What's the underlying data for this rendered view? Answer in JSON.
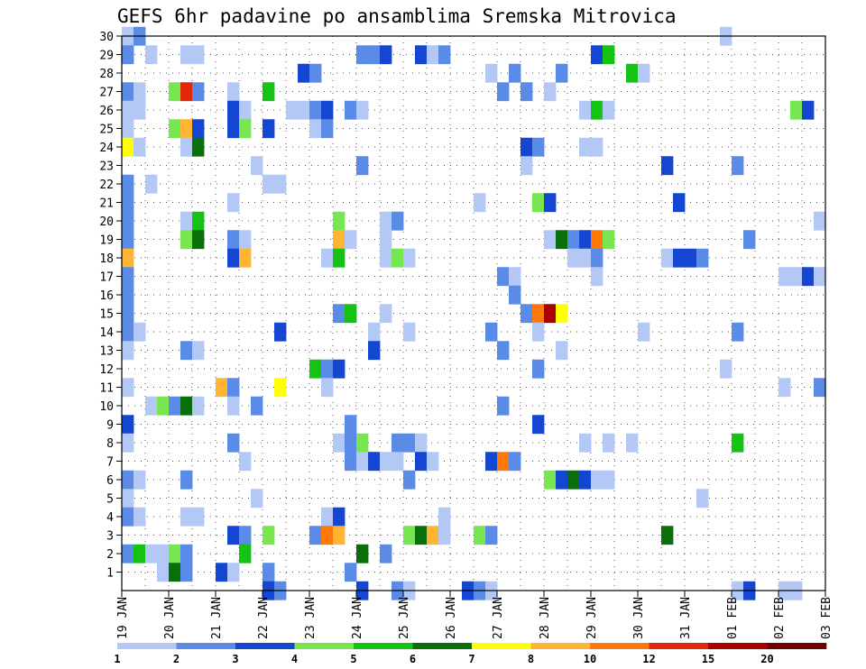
{
  "page": {
    "title": "GEFS 6hr padavine po ansamblima Sremska Mitrovica"
  },
  "chart_data": {
    "type": "heatmap",
    "title": "GEFS 6hr padavine po ansamblima Sremska Mitrovica",
    "xlabel": "",
    "ylabel": "",
    "ylim": [
      0,
      30
    ],
    "xlim": [
      0,
      60
    ],
    "grid": true,
    "x_ticks": [
      {
        "label": "19 JAN",
        "x": 0
      },
      {
        "label": "20 JAN",
        "x": 4
      },
      {
        "label": "21 JAN",
        "x": 8
      },
      {
        "label": "22 JAN",
        "x": 12
      },
      {
        "label": "23 JAN",
        "x": 16
      },
      {
        "label": "24 JAN",
        "x": 20
      },
      {
        "label": "25 JAN",
        "x": 24
      },
      {
        "label": "26 JAN",
        "x": 28
      },
      {
        "label": "27 JAN",
        "x": 32
      },
      {
        "label": "28 JAN",
        "x": 36
      },
      {
        "label": "29 JAN",
        "x": 40
      },
      {
        "label": "30 JAN",
        "x": 44
      },
      {
        "label": "31 JAN",
        "x": 48
      },
      {
        "label": "01 FEB",
        "x": 52
      },
      {
        "label": "02 FEB",
        "x": 56
      },
      {
        "label": "03 FEB",
        "x": 60
      }
    ],
    "y_ticks": [
      1,
      2,
      3,
      4,
      5,
      6,
      7,
      8,
      9,
      10,
      11,
      12,
      13,
      14,
      15,
      16,
      17,
      18,
      19,
      20,
      21,
      22,
      23,
      24,
      25,
      26,
      27,
      28,
      29,
      30
    ],
    "colorbar": {
      "boundaries": [
        "1",
        "2",
        "3",
        "4",
        "5",
        "6",
        "7",
        "8",
        "10",
        "12",
        "15",
        "20"
      ],
      "colors": [
        "#b4c8f5",
        "#5a8be6",
        "#1446d2",
        "#78e650",
        "#14c314",
        "#0a6e0a",
        "#ffff00",
        "#ffb432",
        "#ff780a",
        "#e1280a",
        "#aa0000",
        "#6e0000"
      ]
    },
    "cells": [
      {
        "m": 30,
        "t": 0,
        "c": 0
      },
      {
        "m": 30,
        "t": 1,
        "c": 1
      },
      {
        "m": 30,
        "t": 51,
        "c": 0
      },
      {
        "m": 29,
        "t": 0,
        "c": 1
      },
      {
        "m": 29,
        "t": 2,
        "c": 0
      },
      {
        "m": 29,
        "t": 5,
        "c": 0
      },
      {
        "m": 29,
        "t": 6,
        "c": 0
      },
      {
        "m": 29,
        "t": 20,
        "c": 1
      },
      {
        "m": 29,
        "t": 21,
        "c": 1
      },
      {
        "m": 29,
        "t": 22,
        "c": 2
      },
      {
        "m": 29,
        "t": 25,
        "c": 2
      },
      {
        "m": 29,
        "t": 26,
        "c": 0
      },
      {
        "m": 29,
        "t": 27,
        "c": 1
      },
      {
        "m": 29,
        "t": 40,
        "c": 2
      },
      {
        "m": 29,
        "t": 41,
        "c": 4
      },
      {
        "m": 28,
        "t": 15,
        "c": 2
      },
      {
        "m": 28,
        "t": 16,
        "c": 1
      },
      {
        "m": 28,
        "t": 31,
        "c": 0
      },
      {
        "m": 28,
        "t": 33,
        "c": 1
      },
      {
        "m": 28,
        "t": 37,
        "c": 1
      },
      {
        "m": 28,
        "t": 43,
        "c": 4
      },
      {
        "m": 28,
        "t": 44,
        "c": 0
      },
      {
        "m": 27,
        "t": 0,
        "c": 1
      },
      {
        "m": 27,
        "t": 1,
        "c": 0
      },
      {
        "m": 27,
        "t": 4,
        "c": 3
      },
      {
        "m": 27,
        "t": 5,
        "c": 9
      },
      {
        "m": 27,
        "t": 6,
        "c": 1
      },
      {
        "m": 27,
        "t": 9,
        "c": 0
      },
      {
        "m": 27,
        "t": 12,
        "c": 4
      },
      {
        "m": 27,
        "t": 32,
        "c": 1
      },
      {
        "m": 27,
        "t": 34,
        "c": 1
      },
      {
        "m": 27,
        "t": 36,
        "c": 0
      },
      {
        "m": 26,
        "t": 0,
        "c": 0
      },
      {
        "m": 26,
        "t": 1,
        "c": 0
      },
      {
        "m": 26,
        "t": 9,
        "c": 2
      },
      {
        "m": 26,
        "t": 10,
        "c": 0
      },
      {
        "m": 26,
        "t": 14,
        "c": 0
      },
      {
        "m": 26,
        "t": 15,
        "c": 0
      },
      {
        "m": 26,
        "t": 16,
        "c": 1
      },
      {
        "m": 26,
        "t": 17,
        "c": 2
      },
      {
        "m": 26,
        "t": 19,
        "c": 1
      },
      {
        "m": 26,
        "t": 20,
        "c": 0
      },
      {
        "m": 26,
        "t": 39,
        "c": 0
      },
      {
        "m": 26,
        "t": 40,
        "c": 4
      },
      {
        "m": 26,
        "t": 41,
        "c": 0
      },
      {
        "m": 26,
        "t": 57,
        "c": 3
      },
      {
        "m": 26,
        "t": 58,
        "c": 2
      },
      {
        "m": 25,
        "t": 0,
        "c": 0
      },
      {
        "m": 25,
        "t": 4,
        "c": 3
      },
      {
        "m": 25,
        "t": 5,
        "c": 7
      },
      {
        "m": 25,
        "t": 6,
        "c": 2
      },
      {
        "m": 25,
        "t": 9,
        "c": 2
      },
      {
        "m": 25,
        "t": 10,
        "c": 3
      },
      {
        "m": 25,
        "t": 12,
        "c": 2
      },
      {
        "m": 25,
        "t": 16,
        "c": 0
      },
      {
        "m": 25,
        "t": 17,
        "c": 1
      },
      {
        "m": 24,
        "t": 0,
        "c": 6
      },
      {
        "m": 24,
        "t": 1,
        "c": 0
      },
      {
        "m": 24,
        "t": 5,
        "c": 0
      },
      {
        "m": 24,
        "t": 6,
        "c": 5
      },
      {
        "m": 24,
        "t": 34,
        "c": 2
      },
      {
        "m": 24,
        "t": 35,
        "c": 1
      },
      {
        "m": 24,
        "t": 39,
        "c": 0
      },
      {
        "m": 24,
        "t": 40,
        "c": 0
      },
      {
        "m": 23,
        "t": 11,
        "c": 0
      },
      {
        "m": 23,
        "t": 20,
        "c": 1
      },
      {
        "m": 23,
        "t": 34,
        "c": 0
      },
      {
        "m": 23,
        "t": 46,
        "c": 2
      },
      {
        "m": 23,
        "t": 52,
        "c": 1
      },
      {
        "m": 22,
        "t": 0,
        "c": 1
      },
      {
        "m": 22,
        "t": 2,
        "c": 0
      },
      {
        "m": 22,
        "t": 12,
        "c": 0
      },
      {
        "m": 22,
        "t": 13,
        "c": 0
      },
      {
        "m": 21,
        "t": 0,
        "c": 1
      },
      {
        "m": 21,
        "t": 9,
        "c": 0
      },
      {
        "m": 21,
        "t": 30,
        "c": 0
      },
      {
        "m": 21,
        "t": 35,
        "c": 3
      },
      {
        "m": 21,
        "t": 36,
        "c": 2
      },
      {
        "m": 21,
        "t": 47,
        "c": 2
      },
      {
        "m": 20,
        "t": 0,
        "c": 1
      },
      {
        "m": 20,
        "t": 5,
        "c": 0
      },
      {
        "m": 20,
        "t": 6,
        "c": 4
      },
      {
        "m": 20,
        "t": 18,
        "c": 3
      },
      {
        "m": 20,
        "t": 22,
        "c": 0
      },
      {
        "m": 20,
        "t": 23,
        "c": 1
      },
      {
        "m": 20,
        "t": 59,
        "c": 0
      },
      {
        "m": 19,
        "t": 0,
        "c": 1
      },
      {
        "m": 19,
        "t": 5,
        "c": 3
      },
      {
        "m": 19,
        "t": 6,
        "c": 5
      },
      {
        "m": 19,
        "t": 9,
        "c": 1
      },
      {
        "m": 19,
        "t": 10,
        "c": 0
      },
      {
        "m": 19,
        "t": 18,
        "c": 7
      },
      {
        "m": 19,
        "t": 19,
        "c": 0
      },
      {
        "m": 19,
        "t": 22,
        "c": 0
      },
      {
        "m": 19,
        "t": 36,
        "c": 0
      },
      {
        "m": 19,
        "t": 37,
        "c": 5
      },
      {
        "m": 19,
        "t": 38,
        "c": 1
      },
      {
        "m": 19,
        "t": 39,
        "c": 2
      },
      {
        "m": 19,
        "t": 40,
        "c": 8
      },
      {
        "m": 19,
        "t": 41,
        "c": 3
      },
      {
        "m": 19,
        "t": 53,
        "c": 1
      },
      {
        "m": 18,
        "t": 0,
        "c": 7
      },
      {
        "m": 18,
        "t": 9,
        "c": 2
      },
      {
        "m": 18,
        "t": 10,
        "c": 7
      },
      {
        "m": 18,
        "t": 17,
        "c": 0
      },
      {
        "m": 18,
        "t": 18,
        "c": 4
      },
      {
        "m": 18,
        "t": 22,
        "c": 0
      },
      {
        "m": 18,
        "t": 23,
        "c": 3
      },
      {
        "m": 18,
        "t": 24,
        "c": 0
      },
      {
        "m": 18,
        "t": 38,
        "c": 0
      },
      {
        "m": 18,
        "t": 39,
        "c": 0
      },
      {
        "m": 18,
        "t": 40,
        "c": 1
      },
      {
        "m": 18,
        "t": 46,
        "c": 0
      },
      {
        "m": 18,
        "t": 47,
        "c": 2
      },
      {
        "m": 18,
        "t": 48,
        "c": 2
      },
      {
        "m": 18,
        "t": 49,
        "c": 1
      },
      {
        "m": 17,
        "t": 0,
        "c": 1
      },
      {
        "m": 17,
        "t": 32,
        "c": 1
      },
      {
        "m": 17,
        "t": 33,
        "c": 0
      },
      {
        "m": 17,
        "t": 40,
        "c": 0
      },
      {
        "m": 17,
        "t": 56,
        "c": 0
      },
      {
        "m": 17,
        "t": 57,
        "c": 0
      },
      {
        "m": 17,
        "t": 58,
        "c": 2
      },
      {
        "m": 17,
        "t": 59,
        "c": 0
      },
      {
        "m": 16,
        "t": 0,
        "c": 1
      },
      {
        "m": 16,
        "t": 33,
        "c": 1
      },
      {
        "m": 15,
        "t": 0,
        "c": 1
      },
      {
        "m": 15,
        "t": 18,
        "c": 1
      },
      {
        "m": 15,
        "t": 19,
        "c": 4
      },
      {
        "m": 15,
        "t": 22,
        "c": 0
      },
      {
        "m": 15,
        "t": 34,
        "c": 1
      },
      {
        "m": 15,
        "t": 35,
        "c": 8
      },
      {
        "m": 15,
        "t": 36,
        "c": 10
      },
      {
        "m": 15,
        "t": 37,
        "c": 6
      },
      {
        "m": 14,
        "t": 0,
        "c": 1
      },
      {
        "m": 14,
        "t": 1,
        "c": 0
      },
      {
        "m": 14,
        "t": 13,
        "c": 2
      },
      {
        "m": 14,
        "t": 21,
        "c": 0
      },
      {
        "m": 14,
        "t": 24,
        "c": 0
      },
      {
        "m": 14,
        "t": 31,
        "c": 1
      },
      {
        "m": 14,
        "t": 35,
        "c": 0
      },
      {
        "m": 14,
        "t": 44,
        "c": 0
      },
      {
        "m": 14,
        "t": 52,
        "c": 1
      },
      {
        "m": 13,
        "t": 0,
        "c": 0
      },
      {
        "m": 13,
        "t": 5,
        "c": 1
      },
      {
        "m": 13,
        "t": 6,
        "c": 0
      },
      {
        "m": 13,
        "t": 21,
        "c": 2
      },
      {
        "m": 13,
        "t": 32,
        "c": 1
      },
      {
        "m": 13,
        "t": 37,
        "c": 0
      },
      {
        "m": 12,
        "t": 16,
        "c": 4
      },
      {
        "m": 12,
        "t": 17,
        "c": 1
      },
      {
        "m": 12,
        "t": 18,
        "c": 2
      },
      {
        "m": 12,
        "t": 35,
        "c": 1
      },
      {
        "m": 12,
        "t": 51,
        "c": 0
      },
      {
        "m": 11,
        "t": 0,
        "c": 0
      },
      {
        "m": 11,
        "t": 8,
        "c": 7
      },
      {
        "m": 11,
        "t": 9,
        "c": 1
      },
      {
        "m": 11,
        "t": 13,
        "c": 6
      },
      {
        "m": 11,
        "t": 17,
        "c": 0
      },
      {
        "m": 11,
        "t": 56,
        "c": 0
      },
      {
        "m": 11,
        "t": 59,
        "c": 1
      },
      {
        "m": 10,
        "t": 2,
        "c": 0
      },
      {
        "m": 10,
        "t": 3,
        "c": 3
      },
      {
        "m": 10,
        "t": 4,
        "c": 1
      },
      {
        "m": 10,
        "t": 5,
        "c": 5
      },
      {
        "m": 10,
        "t": 6,
        "c": 0
      },
      {
        "m": 10,
        "t": 9,
        "c": 0
      },
      {
        "m": 10,
        "t": 11,
        "c": 1
      },
      {
        "m": 10,
        "t": 32,
        "c": 1
      },
      {
        "m": 9,
        "t": 0,
        "c": 2
      },
      {
        "m": 9,
        "t": 19,
        "c": 1
      },
      {
        "m": 9,
        "t": 35,
        "c": 2
      },
      {
        "m": 8,
        "t": 0,
        "c": 0
      },
      {
        "m": 8,
        "t": 9,
        "c": 1
      },
      {
        "m": 8,
        "t": 18,
        "c": 0
      },
      {
        "m": 8,
        "t": 19,
        "c": 1
      },
      {
        "m": 8,
        "t": 20,
        "c": 3
      },
      {
        "m": 8,
        "t": 23,
        "c": 1
      },
      {
        "m": 8,
        "t": 24,
        "c": 1
      },
      {
        "m": 8,
        "t": 25,
        "c": 0
      },
      {
        "m": 8,
        "t": 39,
        "c": 0
      },
      {
        "m": 8,
        "t": 41,
        "c": 0
      },
      {
        "m": 8,
        "t": 43,
        "c": 0
      },
      {
        "m": 8,
        "t": 52,
        "c": 4
      },
      {
        "m": 7,
        "t": 10,
        "c": 0
      },
      {
        "m": 7,
        "t": 19,
        "c": 1
      },
      {
        "m": 7,
        "t": 20,
        "c": 0
      },
      {
        "m": 7,
        "t": 21,
        "c": 2
      },
      {
        "m": 7,
        "t": 22,
        "c": 0
      },
      {
        "m": 7,
        "t": 23,
        "c": 0
      },
      {
        "m": 7,
        "t": 25,
        "c": 2
      },
      {
        "m": 7,
        "t": 26,
        "c": 0
      },
      {
        "m": 7,
        "t": 31,
        "c": 2
      },
      {
        "m": 7,
        "t": 32,
        "c": 8
      },
      {
        "m": 7,
        "t": 33,
        "c": 1
      },
      {
        "m": 6,
        "t": 0,
        "c": 1
      },
      {
        "m": 6,
        "t": 1,
        "c": 0
      },
      {
        "m": 6,
        "t": 5,
        "c": 1
      },
      {
        "m": 6,
        "t": 24,
        "c": 1
      },
      {
        "m": 6,
        "t": 36,
        "c": 3
      },
      {
        "m": 6,
        "t": 37,
        "c": 2
      },
      {
        "m": 6,
        "t": 38,
        "c": 5
      },
      {
        "m": 6,
        "t": 39,
        "c": 2
      },
      {
        "m": 6,
        "t": 40,
        "c": 0
      },
      {
        "m": 6,
        "t": 41,
        "c": 0
      },
      {
        "m": 5,
        "t": 0,
        "c": 0
      },
      {
        "m": 5,
        "t": 11,
        "c": 0
      },
      {
        "m": 5,
        "t": 49,
        "c": 0
      },
      {
        "m": 4,
        "t": 0,
        "c": 1
      },
      {
        "m": 4,
        "t": 1,
        "c": 0
      },
      {
        "m": 4,
        "t": 5,
        "c": 0
      },
      {
        "m": 4,
        "t": 6,
        "c": 0
      },
      {
        "m": 4,
        "t": 17,
        "c": 0
      },
      {
        "m": 4,
        "t": 18,
        "c": 2
      },
      {
        "m": 4,
        "t": 27,
        "c": 0
      },
      {
        "m": 3,
        "t": 9,
        "c": 2
      },
      {
        "m": 3,
        "t": 10,
        "c": 1
      },
      {
        "m": 3,
        "t": 12,
        "c": 3
      },
      {
        "m": 3,
        "t": 16,
        "c": 1
      },
      {
        "m": 3,
        "t": 17,
        "c": 8
      },
      {
        "m": 3,
        "t": 18,
        "c": 7
      },
      {
        "m": 3,
        "t": 24,
        "c": 3
      },
      {
        "m": 3,
        "t": 25,
        "c": 5
      },
      {
        "m": 3,
        "t": 26,
        "c": 7
      },
      {
        "m": 3,
        "t": 27,
        "c": 0
      },
      {
        "m": 3,
        "t": 30,
        "c": 3
      },
      {
        "m": 3,
        "t": 31,
        "c": 1
      },
      {
        "m": 3,
        "t": 46,
        "c": 5
      },
      {
        "m": 2,
        "t": 0,
        "c": 1
      },
      {
        "m": 2,
        "t": 1,
        "c": 4
      },
      {
        "m": 2,
        "t": 2,
        "c": 0
      },
      {
        "m": 2,
        "t": 3,
        "c": 0
      },
      {
        "m": 2,
        "t": 4,
        "c": 3
      },
      {
        "m": 2,
        "t": 5,
        "c": 1
      },
      {
        "m": 2,
        "t": 10,
        "c": 4
      },
      {
        "m": 2,
        "t": 20,
        "c": 5
      },
      {
        "m": 2,
        "t": 22,
        "c": 1
      },
      {
        "m": 1,
        "t": 3,
        "c": 0
      },
      {
        "m": 1,
        "t": 4,
        "c": 5
      },
      {
        "m": 1,
        "t": 5,
        "c": 1
      },
      {
        "m": 1,
        "t": 8,
        "c": 2
      },
      {
        "m": 1,
        "t": 9,
        "c": 0
      },
      {
        "m": 1,
        "t": 12,
        "c": 1
      },
      {
        "m": 1,
        "t": 19,
        "c": 1
      },
      {
        "m": 0,
        "t": 12,
        "c": 2
      },
      {
        "m": 0,
        "t": 13,
        "c": 1
      },
      {
        "m": 0,
        "t": 20,
        "c": 2
      },
      {
        "m": 0,
        "t": 23,
        "c": 1
      },
      {
        "m": 0,
        "t": 24,
        "c": 0
      },
      {
        "m": 0,
        "t": 29,
        "c": 2
      },
      {
        "m": 0,
        "t": 30,
        "c": 1
      },
      {
        "m": 0,
        "t": 31,
        "c": 0
      },
      {
        "m": 0,
        "t": 52,
        "c": 0
      },
      {
        "m": 0,
        "t": 53,
        "c": 2
      },
      {
        "m": 0,
        "t": 56,
        "c": 0
      },
      {
        "m": 0,
        "t": 57,
        "c": 0
      }
    ]
  }
}
